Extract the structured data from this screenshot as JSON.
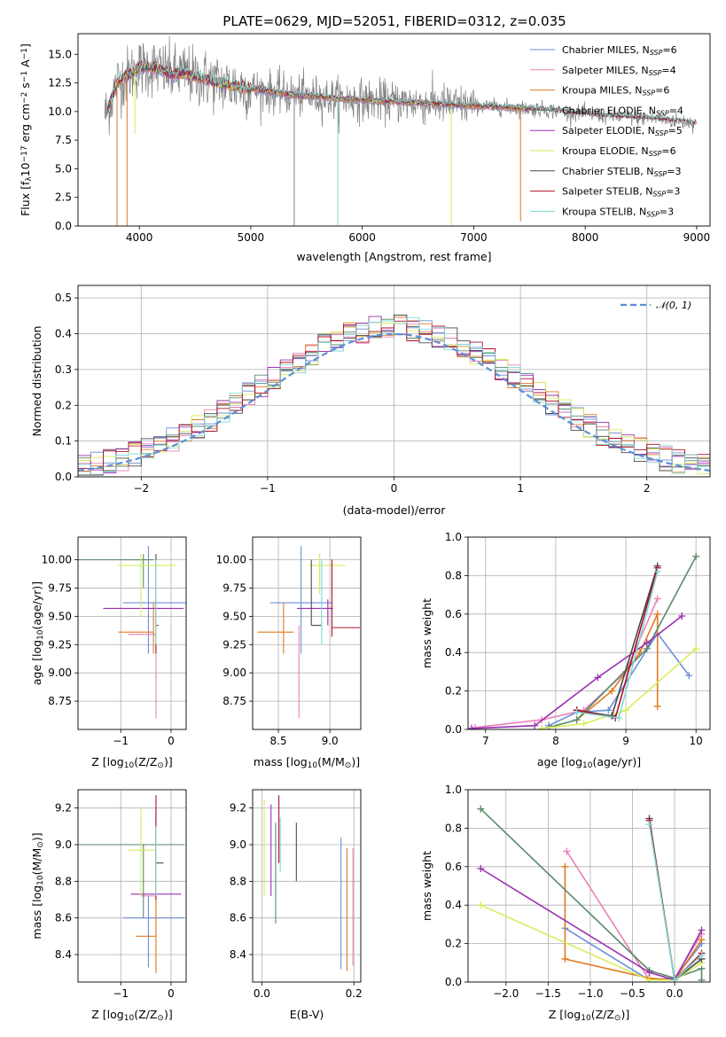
{
  "figure_title": "PLATE=0629, MJD=52051, FIBERID=0312, z=0.035",
  "colors": {
    "Chabrier MILES": "#6b8fd8",
    "Salpeter MILES": "#e880b8",
    "Kroupa MILES": "#e07a20",
    "Chabrier ELODIE": "#5a8a6a",
    "Salpeter ELODIE": "#9a30b0",
    "Kroupa ELODIE": "#d8ec5a",
    "Chabrier STELIB": "#4a4a4a",
    "Salpeter STELIB": "#b0102a",
    "Kroupa STELIB": "#80d8d4",
    "data": "#808080",
    "normal": "#5b8fd6"
  },
  "legend_spectrum": [
    {
      "model": "Chabrier MILES",
      "nssp": "6"
    },
    {
      "model": "Salpeter MILES",
      "nssp": "4"
    },
    {
      "model": "Kroupa MILES",
      "nssp": "6"
    },
    {
      "model": "Chabrier ELODIE",
      "nssp": "4"
    },
    {
      "model": "Salpeter ELODIE",
      "nssp": "5"
    },
    {
      "model": "Kroupa ELODIE",
      "nssp": "6"
    },
    {
      "model": "Chabrier STELIB",
      "nssp": "3"
    },
    {
      "model": "Salpeter STELIB",
      "nssp": "3"
    },
    {
      "model": "Kroupa STELIB",
      "nssp": "3"
    }
  ],
  "legend_prefix": "N",
  "legend_sub": "SSP",
  "chart_data": [
    {
      "id": "spectrum",
      "type": "line",
      "xlabel": "wavelength [Angstrom, rest frame]",
      "ylabel_parts": [
        "Flux [f",
        "λ",
        "10",
        "−17",
        " erg cm",
        "−2",
        " s",
        "−1",
        " A",
        "−1",
        "]"
      ],
      "xlim": [
        3450,
        9120
      ],
      "ylim": [
        0,
        16.8
      ],
      "xticks": [
        4000,
        5000,
        6000,
        7000,
        8000,
        9000
      ],
      "yticks": [
        0.0,
        2.5,
        5.0,
        7.5,
        10.0,
        12.5,
        15.0
      ],
      "continuum_x": [
        3700,
        3800,
        3900,
        4000,
        4100,
        4200,
        4300,
        4400,
        4500,
        4600,
        4800,
        5000,
        5200,
        5400,
        5600,
        5800,
        6000,
        6200,
        6400,
        6600,
        6800,
        7000,
        7200,
        7400,
        7600,
        7800,
        8000,
        8200,
        8400,
        8600,
        8800,
        9000
      ],
      "continuum_y": [
        9.8,
        12.5,
        13.2,
        13.8,
        13.9,
        13.6,
        13.2,
        13.4,
        13.0,
        12.8,
        12.3,
        12.0,
        11.7,
        11.4,
        11.3,
        11.1,
        11.0,
        10.9,
        10.8,
        10.7,
        10.6,
        10.5,
        10.4,
        10.3,
        10.2,
        10.0,
        9.8,
        9.6,
        9.5,
        9.4,
        9.2,
        9.0
      ],
      "drops": [
        {
          "x": 3800,
          "y": 0.0,
          "model": "Kroupa MILES"
        },
        {
          "x": 3890,
          "y": 0.0,
          "model": "Kroupa MILES"
        },
        {
          "x": 3960,
          "y": 8.0,
          "model": "Kroupa ELODIE"
        },
        {
          "x": 5390,
          "y": 0.0,
          "model": "data"
        },
        {
          "x": 5780,
          "y": 0.0,
          "model": "Kroupa STELIB"
        },
        {
          "x": 6800,
          "y": 0.0,
          "model": "Kroupa ELODIE"
        },
        {
          "x": 7420,
          "y": 0.4,
          "model": "Kroupa MILES"
        }
      ]
    },
    {
      "id": "residuals",
      "type": "histogram",
      "xlabel": "(data-model)/error",
      "ylabel": "Normed distribution",
      "xlim": [
        -2.5,
        2.5
      ],
      "ylim": [
        0,
        0.535
      ],
      "xticks": [
        -2,
        -1,
        0,
        1,
        2
      ],
      "yticks": [
        0.0,
        0.1,
        0.2,
        0.3,
        0.4,
        0.5
      ],
      "bin_width": 0.1,
      "reference": {
        "label": "𝒩(0, 1)",
        "mu": 0,
        "sigma": 1
      }
    },
    {
      "id": "age-vs-z",
      "type": "errorbar",
      "xlabel_parts": [
        "Z [log",
        "10",
        "(Z/Z",
        "⊙",
        ")]"
      ],
      "ylabel_parts": [
        "age  [log",
        "10",
        "(age/yr)]"
      ],
      "xlim": [
        -1.85,
        0.3
      ],
      "ylim": [
        8.5,
        10.2
      ],
      "xticks": [
        -1,
        0
      ],
      "yticks": [
        8.75,
        9.0,
        9.25,
        9.5,
        9.75,
        10.0
      ],
      "points": [
        {
          "model": "Chabrier MILES",
          "x": -0.45,
          "xerr": [
            0.5,
            0.9
          ],
          "y": 9.62,
          "yerr": [
            9.17,
            10.12
          ]
        },
        {
          "model": "Salpeter MILES",
          "x": -0.3,
          "xerr": [
            0.55,
            0.0
          ],
          "y": 9.34,
          "yerr": [
            8.6,
            9.42
          ]
        },
        {
          "model": "Kroupa MILES",
          "x": -0.35,
          "xerr": [
            0.7,
            0.0
          ],
          "y": 9.36,
          "yerr": [
            9.17,
            9.62
          ]
        },
        {
          "model": "Chabrier ELODIE",
          "x": -0.55,
          "xerr": [
            1.8,
            0.2
          ],
          "y": 10.0,
          "yerr": [
            9.75,
            10.05
          ]
        },
        {
          "model": "Salpeter ELODIE",
          "x": -0.3,
          "xerr": [
            1.05,
            0.55
          ],
          "y": 9.57,
          "yerr": [
            9.42,
            9.65
          ]
        },
        {
          "model": "Kroupa ELODIE",
          "x": -0.6,
          "xerr": [
            0.45,
            0.7
          ],
          "y": 9.95,
          "yerr": [
            9.5,
            10.05
          ]
        },
        {
          "model": "Chabrier STELIB",
          "x": -0.3,
          "xerr": [
            0.0,
            0.05
          ],
          "y": 9.42,
          "yerr": [
            9.17,
            10.05
          ]
        },
        {
          "model": "Salpeter STELIB",
          "x": -0.3,
          "xerr": [
            0.0,
            0.0
          ],
          "y": 9.42,
          "yerr": [
            9.2,
            10.0
          ]
        },
        {
          "model": "Kroupa STELIB",
          "x": -0.3,
          "xerr": [
            0.0,
            0.0
          ],
          "y": 9.42,
          "yerr": [
            9.25,
            10.0
          ]
        }
      ]
    },
    {
      "id": "age-vs-mass",
      "type": "errorbar",
      "xlabel_parts": [
        "mass [log",
        "10",
        "(M/M",
        "⊙",
        ")]"
      ],
      "xlim": [
        8.25,
        9.3
      ],
      "ylim": [
        8.5,
        10.2
      ],
      "xticks": [
        8.5,
        9.0
      ],
      "yticks": [
        8.75,
        9.0,
        9.25,
        9.5,
        9.75,
        10.0
      ],
      "points": [
        {
          "model": "Chabrier MILES",
          "x": 8.72,
          "xerr": [
            0.3,
            0.3
          ],
          "y": 9.62,
          "yerr": [
            9.17,
            10.12
          ]
        },
        {
          "model": "Salpeter MILES",
          "x": 8.7,
          "xerr": [
            0.0,
            0.0
          ],
          "y": 9.5,
          "yerr": [
            8.6,
            9.42
          ]
        },
        {
          "model": "Kroupa MILES",
          "x": 8.55,
          "xerr": [
            0.25,
            0.1
          ],
          "y": 9.36,
          "yerr": [
            9.17,
            9.62
          ]
        },
        {
          "model": "Chabrier ELODIE",
          "x": 8.9,
          "xerr": [
            0.0,
            0.0
          ],
          "y": 9.8,
          "yerr": [
            9.75,
            10.05
          ]
        },
        {
          "model": "Salpeter ELODIE",
          "x": 8.98,
          "xerr": [
            0.3,
            0.05
          ],
          "y": 9.57,
          "yerr": [
            9.42,
            9.65
          ]
        },
        {
          "model": "Kroupa ELODIE",
          "x": 8.9,
          "xerr": [
            0.1,
            0.25
          ],
          "y": 9.95,
          "yerr": [
            9.7,
            10.05
          ]
        },
        {
          "model": "Chabrier STELIB",
          "x": 8.82,
          "xerr": [
            0.0,
            0.1
          ],
          "y": 9.42,
          "yerr": [
            9.42,
            10.0
          ]
        },
        {
          "model": "Salpeter STELIB",
          "x": 9.02,
          "xerr": [
            0.0,
            0.27
          ],
          "y": 9.4,
          "yerr": [
            9.32,
            10.0
          ]
        },
        {
          "model": "Kroupa STELIB",
          "x": 8.92,
          "xerr": [
            0.0,
            0.0
          ],
          "y": 9.42,
          "yerr": [
            9.25,
            10.0
          ]
        }
      ]
    },
    {
      "id": "massweight-vs-age",
      "type": "line",
      "xlabel_parts": [
        "age  [log",
        "10",
        "(age/yr)]"
      ],
      "ylabel": "mass weight",
      "xlim": [
        6.75,
        10.2
      ],
      "ylim": [
        0,
        1
      ],
      "xticks": [
        7,
        8,
        9,
        10
      ],
      "yticks": [
        0.0,
        0.2,
        0.4,
        0.6,
        0.8,
        1.0
      ],
      "series": [
        {
          "model": "Chabrier MILES",
          "x": [
            7.9,
            8.3,
            8.75,
            9.45,
            9.9
          ],
          "y": [
            0.02,
            0.09,
            0.1,
            0.5,
            0.28
          ]
        },
        {
          "model": "Salpeter MILES",
          "x": [
            6.85,
            7.8,
            8.4,
            9.0,
            9.45
          ],
          "y": [
            0.01,
            0.05,
            0.1,
            0.3,
            0.68
          ]
        },
        {
          "model": "Kroupa MILES",
          "x": [
            8.3,
            8.8,
            9.2,
            9.45,
            9.45
          ],
          "y": [
            0.05,
            0.2,
            0.4,
            0.6,
            0.12
          ]
        },
        {
          "model": "Chabrier ELODIE",
          "x": [
            7.9,
            8.3,
            9.3,
            10.0
          ],
          "y": [
            0.01,
            0.05,
            0.42,
            0.9
          ]
        },
        {
          "model": "Salpeter ELODIE",
          "x": [
            6.8,
            7.7,
            8.6,
            9.3,
            9.8
          ],
          "y": [
            0.005,
            0.02,
            0.27,
            0.45,
            0.59
          ]
        },
        {
          "model": "Kroupa ELODIE",
          "x": [
            7.8,
            8.4,
            9.0,
            10.0
          ],
          "y": [
            0.005,
            0.03,
            0.1,
            0.42
          ]
        },
        {
          "model": "Chabrier STELIB",
          "x": [
            8.3,
            8.8,
            9.45
          ],
          "y": [
            0.1,
            0.07,
            0.85
          ]
        },
        {
          "model": "Salpeter STELIB",
          "x": [
            8.3,
            8.85,
            9.45
          ],
          "y": [
            0.1,
            0.06,
            0.84
          ]
        },
        {
          "model": "Kroupa STELIB",
          "x": [
            8.3,
            8.9,
            9.45
          ],
          "y": [
            0.09,
            0.06,
            0.82
          ]
        }
      ]
    },
    {
      "id": "mass-vs-z",
      "type": "errorbar",
      "xlabel_parts": [
        "Z [log",
        "10",
        "(Z/Z",
        "⊙",
        ")]"
      ],
      "ylabel_parts": [
        "mass [log",
        "10",
        "(M/M",
        "⊙",
        ")]"
      ],
      "xlim": [
        -1.85,
        0.3
      ],
      "ylim": [
        8.25,
        9.3
      ],
      "xticks": [
        -1,
        0
      ],
      "yticks": [
        8.4,
        8.6,
        8.8,
        9.0,
        9.2
      ],
      "points": [
        {
          "model": "Chabrier MILES",
          "x": -0.45,
          "xerr": [
            0.5,
            0.7
          ],
          "y": 8.6,
          "yerr": [
            8.33,
            8.72
          ]
        },
        {
          "model": "Salpeter MILES",
          "x": -0.3,
          "xerr": [
            0.3,
            0.0
          ],
          "y": 8.72,
          "yerr": [
            8.3,
            8.95
          ]
        },
        {
          "model": "Kroupa MILES",
          "x": -0.3,
          "xerr": [
            0.4,
            0.0
          ],
          "y": 8.5,
          "yerr": [
            8.3,
            8.72
          ]
        },
        {
          "model": "Chabrier ELODIE",
          "x": -0.55,
          "xerr": [
            1.3,
            0.8
          ],
          "y": 9.0,
          "yerr": [
            8.6,
            9.0
          ]
        },
        {
          "model": "Salpeter ELODIE",
          "x": -0.3,
          "xerr": [
            0.5,
            0.5
          ],
          "y": 8.73,
          "yerr": [
            8.7,
            9.2
          ]
        },
        {
          "model": "Kroupa ELODIE",
          "x": -0.6,
          "xerr": [
            0.25,
            0.3
          ],
          "y": 8.97,
          "yerr": [
            8.72,
            9.2
          ]
        },
        {
          "model": "Chabrier STELIB",
          "x": -0.3,
          "xerr": [
            0.0,
            0.15
          ],
          "y": 8.9,
          "yerr": [
            8.88,
            9.1
          ]
        },
        {
          "model": "Salpeter STELIB",
          "x": -0.3,
          "xerr": [
            0.0,
            0.0
          ],
          "y": 8.95,
          "yerr": [
            8.7,
            9.27
          ]
        },
        {
          "model": "Kroupa STELIB",
          "x": -0.3,
          "xerr": [
            0.0,
            0.0
          ],
          "y": 8.9,
          "yerr": [
            8.72,
            9.1
          ]
        }
      ]
    },
    {
      "id": "mass-vs-ebv",
      "type": "errorbar",
      "xlabel": "E(B-V)",
      "xlim": [
        -0.02,
        0.215
      ],
      "ylim": [
        8.25,
        9.3
      ],
      "xticks": [
        0.0,
        0.2
      ],
      "yticks": [
        8.4,
        8.6,
        8.8,
        9.0,
        9.2
      ],
      "points": [
        {
          "model": "Chabrier MILES",
          "x": 0.172,
          "xerr": [
            0,
            0
          ],
          "y": 8.65,
          "yerr": [
            8.32,
            9.04
          ]
        },
        {
          "model": "Salpeter MILES",
          "x": 0.198,
          "xerr": [
            0,
            0
          ],
          "y": 8.65,
          "yerr": [
            8.34,
            8.98
          ]
        },
        {
          "model": "Kroupa MILES",
          "x": 0.185,
          "xerr": [
            0,
            0
          ],
          "y": 8.65,
          "yerr": [
            8.31,
            8.98
          ]
        },
        {
          "model": "Chabrier ELODIE",
          "x": 0.03,
          "xerr": [
            0,
            0
          ],
          "y": 8.8,
          "yerr": [
            8.57,
            9.12
          ]
        },
        {
          "model": "Salpeter ELODIE",
          "x": 0.02,
          "xerr": [
            0,
            0
          ],
          "y": 8.95,
          "yerr": [
            8.72,
            9.22
          ]
        },
        {
          "model": "Kroupa ELODIE",
          "x": 0.005,
          "xerr": [
            0,
            0
          ],
          "y": 8.98,
          "yerr": [
            8.72,
            9.25
          ]
        },
        {
          "model": "Chabrier STELIB",
          "x": 0.075,
          "xerr": [
            0,
            0
          ],
          "y": 8.95,
          "yerr": [
            8.8,
            9.12
          ]
        },
        {
          "model": "Salpeter STELIB",
          "x": 0.037,
          "xerr": [
            0,
            0
          ],
          "y": 9.1,
          "yerr": [
            8.9,
            9.27
          ]
        },
        {
          "model": "Kroupa STELIB",
          "x": 0.04,
          "xerr": [
            0,
            0
          ],
          "y": 8.98,
          "yerr": [
            8.85,
            9.15
          ]
        }
      ]
    },
    {
      "id": "massweight-vs-z",
      "type": "line",
      "xlabel_parts": [
        "Z [log",
        "10",
        "(Z/Z",
        "⊙",
        ")]"
      ],
      "ylabel": "mass weight",
      "xlim": [
        -2.45,
        0.42
      ],
      "ylim": [
        0,
        1
      ],
      "xticks": [
        -2.0,
        -1.5,
        -1.0,
        -0.5,
        0.0
      ],
      "yticks": [
        0.0,
        0.2,
        0.4,
        0.6,
        0.8,
        1.0
      ],
      "series": [
        {
          "model": "Chabrier MILES",
          "x": [
            -1.3,
            -0.3,
            0.0,
            0.32
          ],
          "y": [
            0.28,
            0.01,
            0.02,
            0.2
          ]
        },
        {
          "model": "Salpeter MILES",
          "x": [
            -1.28,
            -0.3,
            0.0,
            0.32
          ],
          "y": [
            0.68,
            0.01,
            0.02,
            0.25
          ]
        },
        {
          "model": "Kroupa MILES",
          "x": [
            -1.3,
            -1.3,
            -0.3,
            0.0,
            0.32
          ],
          "y": [
            0.6,
            0.12,
            0.02,
            0.01,
            0.22
          ]
        },
        {
          "model": "Chabrier ELODIE",
          "x": [
            -2.3,
            -0.3,
            0.0,
            0.32,
            0.32
          ],
          "y": [
            0.9,
            0.06,
            0.02,
            0.07,
            0.01
          ]
        },
        {
          "model": "Salpeter ELODIE",
          "x": [
            -2.3,
            -0.3,
            0.0,
            0.32
          ],
          "y": [
            0.59,
            0.05,
            0.01,
            0.27
          ]
        },
        {
          "model": "Kroupa ELODIE",
          "x": [
            -2.3,
            -0.3,
            0.0,
            0.32
          ],
          "y": [
            0.4,
            0.01,
            0.01,
            0.1
          ]
        },
        {
          "model": "Chabrier STELIB",
          "x": [
            -0.3,
            0.0,
            0.32
          ],
          "y": [
            0.85,
            0.01,
            0.12
          ]
        },
        {
          "model": "Salpeter STELIB",
          "x": [
            -0.3,
            0.0,
            0.32
          ],
          "y": [
            0.84,
            0.01,
            0.15
          ]
        },
        {
          "model": "Kroupa STELIB",
          "x": [
            -0.3,
            0.0,
            0.32
          ],
          "y": [
            0.82,
            0.01,
            0.14
          ]
        }
      ]
    }
  ]
}
